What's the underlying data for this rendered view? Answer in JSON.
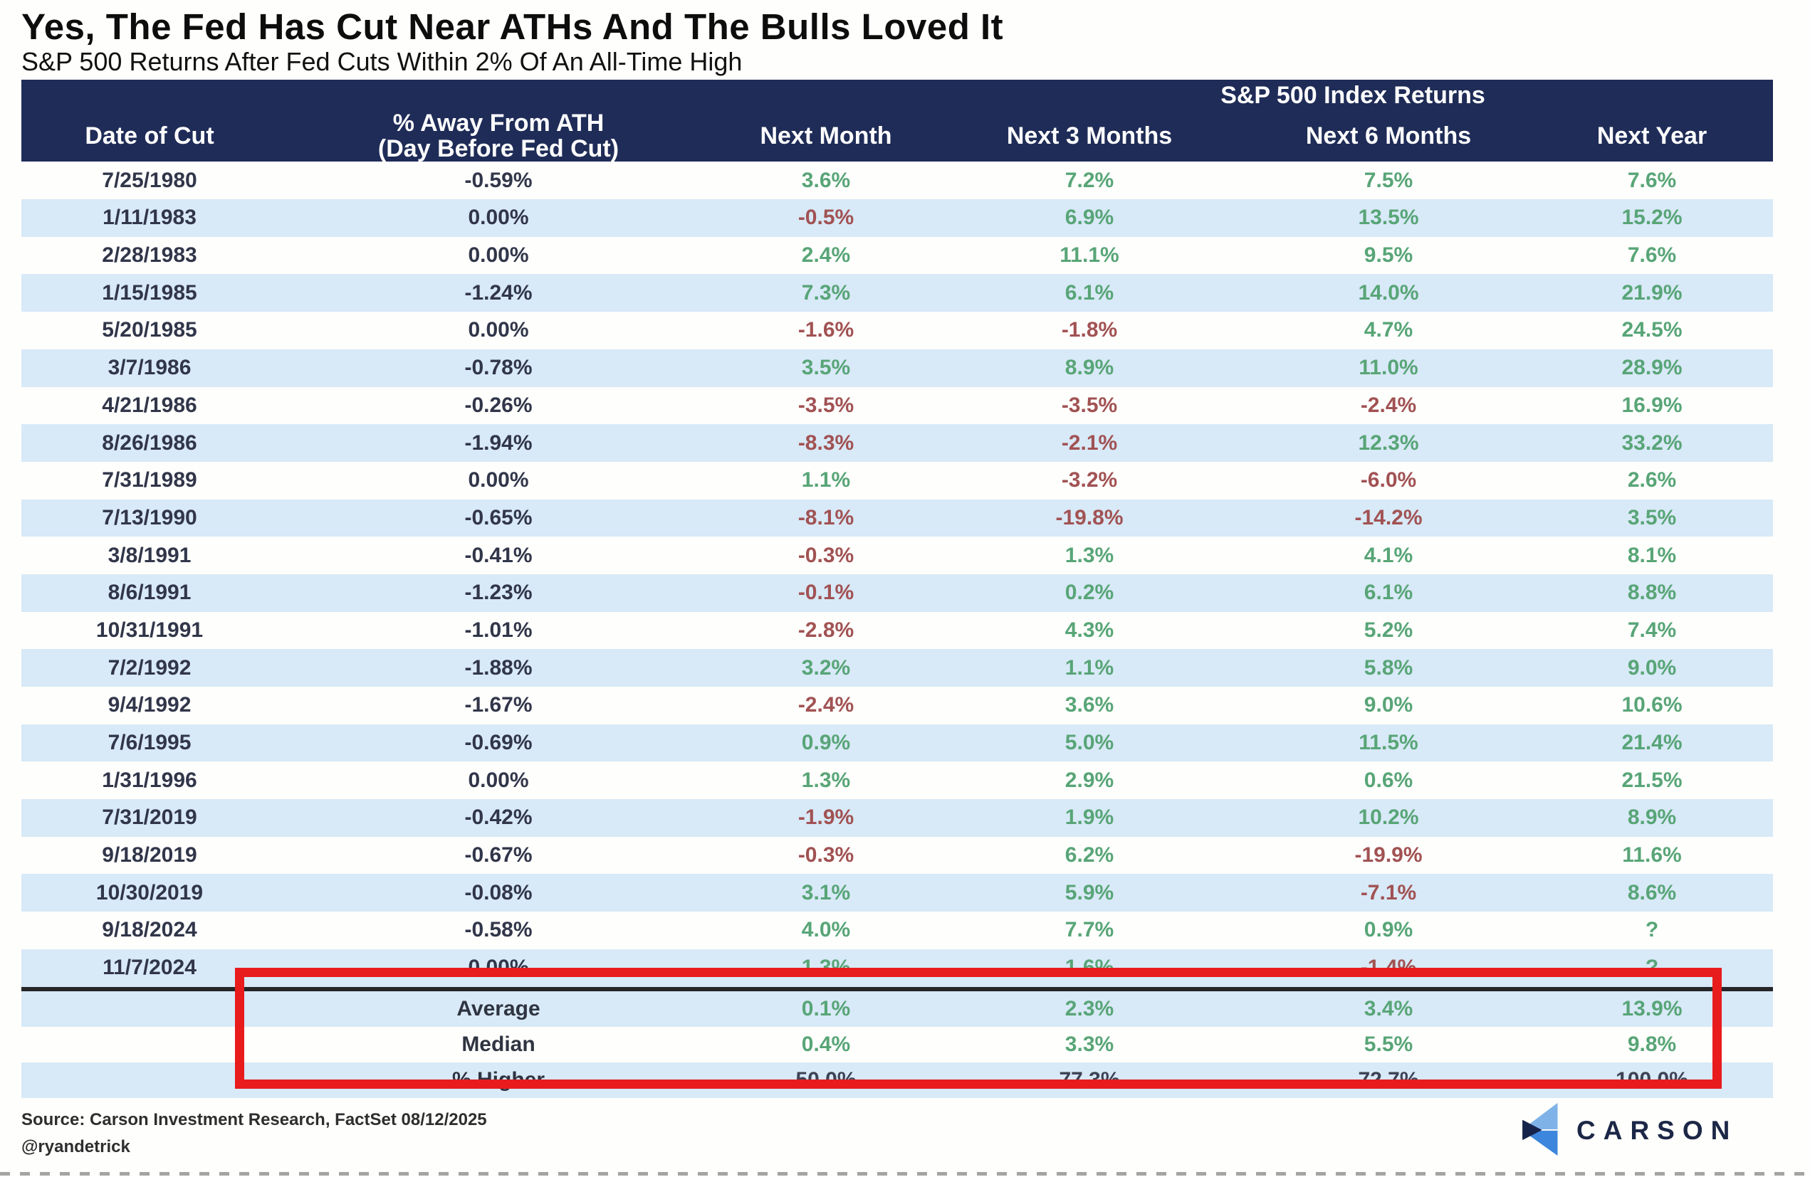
{
  "title": "Yes, The Fed Has Cut Near ATHs And The Bulls Loved It",
  "subtitle": "S&P 500 Returns After Fed Cuts Within 2% Of An All-Time High",
  "source_line1": "Source: Carson Investment Research, FactSet 08/12/2025",
  "source_line2": "@ryandetrick",
  "logo_text": "CARSON",
  "colors": {
    "header_bg": "#1f2c57",
    "stripe_row": "#d8e9f7",
    "positive_green": "#58a577",
    "negative_red": "#a15253",
    "highlight_box_red": "#e81b1d"
  },
  "chart_data": {
    "type": "table",
    "group_header": "S&P 500 Index Returns",
    "columns": [
      "Date of Cut",
      "% Away From ATH (Day Before Fed Cut)",
      "Next Month",
      "Next 3 Months",
      "Next 6 Months",
      "Next Year"
    ],
    "column2_line1": "% Away From ATH",
    "column2_line2": "(Day Before Fed Cut)",
    "rows": [
      [
        "7/25/1980",
        "-0.59%",
        "3.6%",
        "7.2%",
        "7.5%",
        "7.6%"
      ],
      [
        "1/11/1983",
        "0.00%",
        "-0.5%",
        "6.9%",
        "13.5%",
        "15.2%"
      ],
      [
        "2/28/1983",
        "0.00%",
        "2.4%",
        "11.1%",
        "9.5%",
        "7.6%"
      ],
      [
        "1/15/1985",
        "-1.24%",
        "7.3%",
        "6.1%",
        "14.0%",
        "21.9%"
      ],
      [
        "5/20/1985",
        "0.00%",
        "-1.6%",
        "-1.8%",
        "4.7%",
        "24.5%"
      ],
      [
        "3/7/1986",
        "-0.78%",
        "3.5%",
        "8.9%",
        "11.0%",
        "28.9%"
      ],
      [
        "4/21/1986",
        "-0.26%",
        "-3.5%",
        "-3.5%",
        "-2.4%",
        "16.9%"
      ],
      [
        "8/26/1986",
        "-1.94%",
        "-8.3%",
        "-2.1%",
        "12.3%",
        "33.2%"
      ],
      [
        "7/31/1989",
        "0.00%",
        "1.1%",
        "-3.2%",
        "-6.0%",
        "2.6%"
      ],
      [
        "7/13/1990",
        "-0.65%",
        "-8.1%",
        "-19.8%",
        "-14.2%",
        "3.5%"
      ],
      [
        "3/8/1991",
        "-0.41%",
        "-0.3%",
        "1.3%",
        "4.1%",
        "8.1%"
      ],
      [
        "8/6/1991",
        "-1.23%",
        "-0.1%",
        "0.2%",
        "6.1%",
        "8.8%"
      ],
      [
        "10/31/1991",
        "-1.01%",
        "-2.8%",
        "4.3%",
        "5.2%",
        "7.4%"
      ],
      [
        "7/2/1992",
        "-1.88%",
        "3.2%",
        "1.1%",
        "5.8%",
        "9.0%"
      ],
      [
        "9/4/1992",
        "-1.67%",
        "-2.4%",
        "3.6%",
        "9.0%",
        "10.6%"
      ],
      [
        "7/6/1995",
        "-0.69%",
        "0.9%",
        "5.0%",
        "11.5%",
        "21.4%"
      ],
      [
        "1/31/1996",
        "0.00%",
        "1.3%",
        "2.9%",
        "0.6%",
        "21.5%"
      ],
      [
        "7/31/2019",
        "-0.42%",
        "-1.9%",
        "1.9%",
        "10.2%",
        "8.9%"
      ],
      [
        "9/18/2019",
        "-0.67%",
        "-0.3%",
        "6.2%",
        "-19.9%",
        "11.6%"
      ],
      [
        "10/30/2019",
        "-0.08%",
        "3.1%",
        "5.9%",
        "-7.1%",
        "8.6%"
      ],
      [
        "9/18/2024",
        "-0.58%",
        "4.0%",
        "7.7%",
        "0.9%",
        "?"
      ],
      [
        "11/7/2024",
        "0.00%",
        "1.3%",
        "1.6%",
        "-1.4%",
        "?"
      ]
    ],
    "summary": [
      {
        "label": "Average",
        "values": [
          "0.1%",
          "2.3%",
          "3.4%",
          "13.9%"
        ]
      },
      {
        "label": "Median",
        "values": [
          "0.4%",
          "3.3%",
          "5.5%",
          "9.8%"
        ]
      },
      {
        "label": "% Higher",
        "values": [
          "50.0%",
          "77.3%",
          "72.7%",
          "100.0%"
        ]
      }
    ]
  }
}
